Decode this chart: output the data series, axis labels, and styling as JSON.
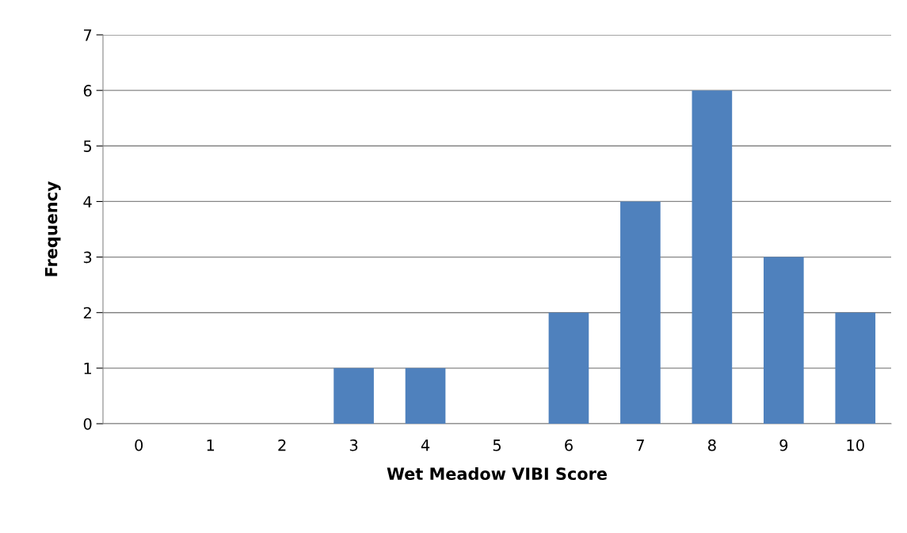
{
  "chart_data": {
    "type": "bar",
    "xlabel": "Wet Meadow VIBI Score",
    "ylabel": "Frequency",
    "categories": [
      "0",
      "1",
      "2",
      "3",
      "4",
      "5",
      "6",
      "7",
      "8",
      "9",
      "10"
    ],
    "values": [
      0,
      0,
      0,
      1,
      1,
      0,
      2,
      4,
      6,
      3,
      2
    ],
    "color": "#4f81bd",
    "ylim": [
      0,
      7
    ],
    "yticks": [
      0,
      1,
      2,
      3,
      4,
      5,
      6,
      7
    ],
    "grid": "y"
  }
}
